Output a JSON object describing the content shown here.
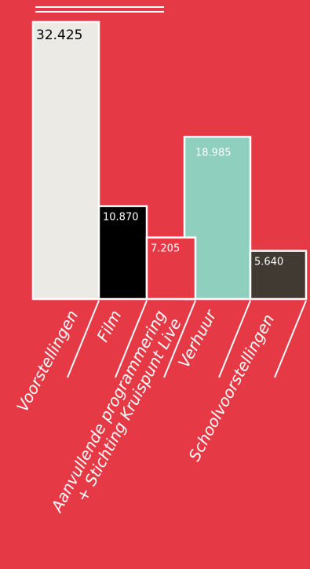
{
  "colors": {
    "background": "#E63946",
    "border": "#FFFFFF",
    "bars": [
      "#EBEAE4",
      "#000000",
      "#E63946",
      "#8FCFBE",
      "#403A33"
    ],
    "value_text": [
      "#000000",
      "#FFFFFF",
      "#FFFFFF",
      "#FFFFFF",
      "#FFFFFF"
    ]
  },
  "chart_data": {
    "type": "bar",
    "categories": [
      "Voorstellingen",
      "Film",
      "Aanvullende programmering + Stichting Kruispunt Live",
      "Verhuur",
      "Schoolvoorstellingen"
    ],
    "category_lines": [
      [
        "Voorstellingen"
      ],
      [
        "Film"
      ],
      [
        "Aanvullende programmering",
        "+ Stichting Kruispunt Live"
      ],
      [
        "Verhuur"
      ],
      [
        "Schoolvoorstellingen"
      ]
    ],
    "values": [
      32425,
      10870,
      7205,
      18985,
      5640
    ],
    "value_labels": [
      "32.425",
      "10.870",
      "7.205",
      "18.985",
      "5.640"
    ],
    "ylim": [
      0,
      32425
    ],
    "grid": false,
    "legend": "none",
    "title": "",
    "xlabel": "",
    "ylabel": ""
  }
}
